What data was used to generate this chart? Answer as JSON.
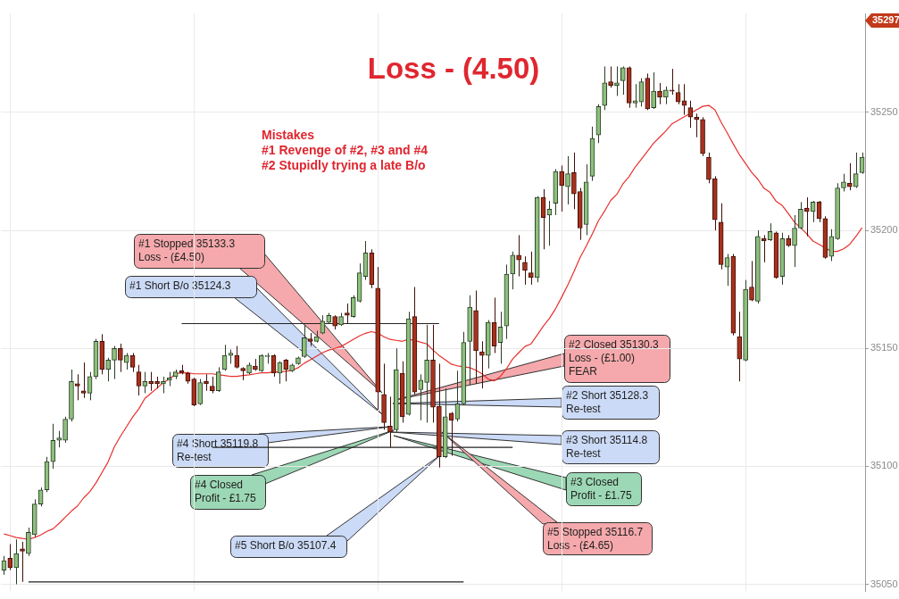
{
  "chart_data": {
    "type": "candlestick",
    "title": "Loss - (4.50)",
    "categories": [
      null,
      null,
      null,
      null,
      null,
      null,
      null,
      null,
      null,
      null,
      null,
      null,
      null,
      null,
      null,
      null,
      null,
      null,
      null,
      null,
      null,
      null,
      null,
      null,
      null,
      null,
      null,
      null,
      null,
      null,
      null,
      null,
      null,
      null,
      null,
      null,
      null,
      null,
      null,
      null,
      null,
      null,
      null,
      null,
      null,
      null,
      null,
      null,
      null,
      null,
      null,
      null,
      null,
      null,
      null,
      null,
      null,
      null,
      null,
      null,
      null,
      null,
      null,
      null,
      null,
      null,
      null,
      null,
      null,
      null,
      null,
      null,
      null,
      null,
      null,
      null,
      null,
      null,
      null,
      null,
      null,
      null,
      null,
      null,
      null,
      null,
      null,
      null,
      null,
      null,
      null,
      null,
      null,
      null,
      null,
      null,
      null,
      null,
      null,
      null,
      null,
      null,
      null,
      null,
      null,
      null,
      null,
      null,
      null,
      null,
      null,
      null,
      null,
      null,
      null,
      null,
      null,
      null,
      null,
      null,
      null,
      null,
      null,
      null,
      null,
      null,
      null,
      null,
      null,
      null,
      null,
      null,
      null,
      null,
      null,
      null,
      null,
      null,
      null,
      null,
      null
    ],
    "ohlc": [
      [
        35056,
        35062,
        35054,
        35060
      ],
      [
        35061,
        35067,
        35056,
        35057
      ],
      [
        35057,
        35069,
        35050,
        35063
      ],
      [
        35065,
        35068,
        35051,
        35064
      ],
      [
        35063,
        35074,
        35062,
        35072
      ],
      [
        35071,
        35086,
        35070,
        35084
      ],
      [
        35084,
        35091,
        35083,
        35090
      ],
      [
        35090,
        35104,
        35089,
        35102
      ],
      [
        35102,
        35118,
        35099,
        35111
      ],
      [
        35111,
        35115,
        35108,
        35112
      ],
      [
        35111,
        35121,
        35110,
        35120
      ],
      [
        35120,
        35141,
        35119,
        35136
      ],
      [
        35135,
        35139,
        35128,
        35134
      ],
      [
        35132,
        35144,
        35129,
        35131
      ],
      [
        35131,
        35140,
        35128,
        35138
      ],
      [
        35138,
        35154,
        35137,
        35153
      ],
      [
        35153,
        35156,
        35139,
        35141
      ],
      [
        35141,
        35146,
        35136,
        35145
      ],
      [
        35145,
        35151,
        35137,
        35150
      ],
      [
        35150,
        35152,
        35140,
        35145
      ],
      [
        35144,
        35148,
        35141,
        35147
      ],
      [
        35147,
        35148,
        35140,
        35142
      ],
      [
        35140,
        35143,
        35130,
        35134
      ],
      [
        35134,
        35140,
        35131,
        35136
      ],
      [
        35136,
        35140,
        35132,
        35135
      ],
      [
        35136,
        35138,
        35133,
        35135
      ],
      [
        35135,
        35138,
        35131,
        35136
      ],
      [
        35136.5,
        35140,
        35134,
        35137.5
      ],
      [
        35138,
        35141,
        35137,
        35140
      ],
      [
        35140.5,
        35143,
        35139,
        35139.5
      ],
      [
        35139.5,
        35140,
        35135,
        35136
      ],
      [
        35137,
        35137.5,
        35125.5,
        35126
      ],
      [
        35126.5,
        35137,
        35126,
        35135.5
      ],
      [
        35136,
        35139,
        35132,
        35135
      ],
      [
        35134,
        35138,
        35131,
        35132
      ],
      [
        35132,
        35142,
        35131.5,
        35140
      ],
      [
        35141,
        35151.5,
        35140.5,
        35147
      ],
      [
        35147,
        35149.5,
        35143.5,
        35148
      ],
      [
        35147,
        35151,
        35141.5,
        35142
      ],
      [
        35141.5,
        35142,
        35136.5,
        35140.5
      ],
      [
        35139.5,
        35144,
        35139,
        35143
      ],
      [
        35142.5,
        35145.5,
        35140.5,
        35141
      ],
      [
        35140.5,
        35147.5,
        35140,
        35147
      ],
      [
        35146.5,
        35148,
        35143.5,
        35147
      ],
      [
        35147,
        35147.5,
        35138,
        35139.5
      ],
      [
        35139.5,
        35144.5,
        35135,
        35144
      ],
      [
        35145,
        35145.5,
        35136,
        35141
      ],
      [
        35140.5,
        35143.5,
        35140,
        35143
      ],
      [
        35143.5,
        35146.5,
        35143,
        35146
      ],
      [
        35146.5,
        35160,
        35146,
        35154.5
      ],
      [
        35154,
        35156.5,
        35151,
        35153
      ],
      [
        35153,
        35157.5,
        35152.5,
        35155
      ],
      [
        35156.5,
        35164,
        35156,
        35161.5
      ],
      [
        35161,
        35165,
        35160.5,
        35164
      ],
      [
        35163.5,
        35164,
        35158,
        35159.5
      ],
      [
        35160,
        35165,
        35159.5,
        35163.5
      ],
      [
        35165,
        35169,
        35160.5,
        35164
      ],
      [
        35163.5,
        35172.5,
        35163,
        35171.5
      ],
      [
        35170,
        35186,
        35169.5,
        35182
      ],
      [
        35180.5,
        35195.5,
        35179,
        35190.5
      ],
      [
        35190.5,
        35192,
        35175.5,
        35177
      ],
      [
        35175.5,
        35184.5,
        35124,
        35131.5
      ],
      [
        35130.5,
        35143.5,
        35115.5,
        35118.5
      ],
      [
        35117,
        35129.5,
        35108,
        35114.5
      ],
      [
        35115.5,
        35150,
        35114.5,
        35141
      ],
      [
        35139.5,
        35144.5,
        35118.5,
        35121
      ],
      [
        35122,
        35165.5,
        35121.5,
        35162.5
      ],
      [
        35163.5,
        35176,
        35130.5,
        35131.5
      ],
      [
        35132.5,
        35139,
        35119.5,
        35136.5
      ],
      [
        35135.5,
        35160,
        35118.5,
        35145
      ],
      [
        35145,
        35160,
        35118.5,
        35125
      ],
      [
        35125.5,
        35143.5,
        35099.5,
        35104
      ],
      [
        35104,
        35133,
        35103.5,
        35121
      ],
      [
        35122.5,
        35123,
        35104.5,
        35119.5
      ],
      [
        35120,
        35140.5,
        35119,
        35126.5
      ],
      [
        35126.5,
        35157,
        35126,
        35152.5
      ],
      [
        35153,
        35172.5,
        35134.5,
        35167.5
      ],
      [
        35166,
        35174.5,
        35135,
        35149
      ],
      [
        35148.5,
        35153,
        35133,
        35147
      ],
      [
        35147,
        35162,
        35141.5,
        35161
      ],
      [
        35161,
        35171.5,
        35148,
        35151
      ],
      [
        35152.5,
        35165.5,
        35143.5,
        35159
      ],
      [
        35159.5,
        35185.5,
        35154,
        35181.5
      ],
      [
        35181.5,
        35191,
        35175,
        35189.5
      ],
      [
        35189.5,
        35198,
        35180.5,
        35187.5
      ],
      [
        35186.5,
        35189,
        35177,
        35183
      ],
      [
        35182,
        35191,
        35177,
        35180
      ],
      [
        35180,
        35214.5,
        35178,
        35214
      ],
      [
        35214,
        35217.5,
        35192,
        35205.5
      ],
      [
        35206.5,
        35212.5,
        35193.5,
        35209
      ],
      [
        35211.5,
        35226,
        35206.5,
        35225
      ],
      [
        35225,
        35227.5,
        35208,
        35219
      ],
      [
        35218.5,
        35231.5,
        35211,
        35224
      ],
      [
        35224.5,
        35233,
        35209,
        35215.5
      ],
      [
        35216.5,
        35218,
        35196,
        35201
      ],
      [
        35202.5,
        35228,
        35198,
        35220.5
      ],
      [
        35223,
        35244,
        35221,
        35239
      ],
      [
        35240.5,
        35253.5,
        35237,
        35252.5
      ],
      [
        35253,
        35269.5,
        35251,
        35262.5
      ],
      [
        35263,
        35269.5,
        35260.5,
        35261.5
      ],
      [
        35261.5,
        35269.5,
        35257,
        35262.5
      ],
      [
        35263.5,
        35269.5,
        35257.5,
        35269
      ],
      [
        35269,
        35269.5,
        35252,
        35254
      ],
      [
        35254,
        35262,
        35252,
        35255
      ],
      [
        35254.5,
        35264.5,
        35252.5,
        35263
      ],
      [
        35264.5,
        35266.5,
        35251,
        35251.5
      ],
      [
        35252,
        35267,
        35251.5,
        35259
      ],
      [
        35259,
        35262.5,
        35253.5,
        35256.5
      ],
      [
        35256.5,
        35261,
        35253.5,
        35259.5
      ],
      [
        35259.5,
        35268.5,
        35257.5,
        35259
      ],
      [
        35258.5,
        35262,
        35253.5,
        35254.5
      ],
      [
        35255,
        35262,
        35249,
        35253
      ],
      [
        35252,
        35255,
        35243.5,
        35248
      ],
      [
        35248,
        35249.5,
        35239.5,
        35247
      ],
      [
        35247,
        35248,
        35231.5,
        35232.5
      ],
      [
        35231,
        35233,
        35220,
        35221.5
      ],
      [
        35222,
        35223,
        35200,
        35204.5
      ],
      [
        35203.5,
        35211.5,
        35183.5,
        35185.5
      ],
      [
        35184.5,
        35190,
        35176.5,
        35188.5
      ],
      [
        35189,
        35190,
        35155.5,
        35156.5
      ],
      [
        35155,
        35165.5,
        35136,
        35145.5
      ],
      [
        35145,
        35179,
        35144.5,
        35175
      ],
      [
        35176,
        35187,
        35170,
        35170.5
      ],
      [
        35170,
        35200,
        35169,
        35197.5
      ],
      [
        35196.5,
        35198,
        35186.5,
        35195.5
      ],
      [
        35196,
        35203,
        35195.5,
        35199.5
      ],
      [
        35199,
        35199.5,
        35179.5,
        35180
      ],
      [
        35180.5,
        35199,
        35177,
        35196.5
      ],
      [
        35196.5,
        35198,
        35193,
        35193.5
      ],
      [
        35193.5,
        35206.5,
        35184.5,
        35201
      ],
      [
        35201,
        35212,
        35200.5,
        35209
      ],
      [
        35209.5,
        35214,
        35197.5,
        35208
      ],
      [
        35208,
        35212.5,
        35203.5,
        35212
      ],
      [
        35212,
        35212.5,
        35203.5,
        35205
      ],
      [
        35205,
        35206,
        35188,
        35188.5
      ],
      [
        35189,
        35200.5,
        35187,
        35197.5
      ],
      [
        35196.5,
        35220,
        35196,
        35218
      ],
      [
        35218,
        35224,
        35216.5,
        35220.5
      ],
      [
        35220,
        35228.5,
        35217,
        35218.5
      ],
      [
        35218.5,
        35233,
        35218,
        35224
      ],
      [
        35224.5,
        35233,
        35224,
        35231
      ]
    ],
    "series": [
      {
        "type": "line",
        "color": "#e8302c",
        "values": [
          35071.3,
          35070.6,
          35069.8,
          35069.4,
          35069.1,
          35069.8,
          35070.9,
          35072.4,
          35073.5,
          35075.8,
          35078.4,
          35081.0,
          35083.2,
          35086.6,
          35089.2,
          35092.9,
          35097.4,
          35101.9,
          35108.2,
          35112.7,
          35116.8,
          35120.9,
          35124.3,
          35128.8,
          35131.0,
          35133.2,
          35135.5,
          35137.0,
          35139.2,
          35139.6,
          35139.6,
          35139.2,
          35139.2,
          35139.2,
          35139.2,
          35138.8,
          35138.5,
          35138.1,
          35138.1,
          35138.5,
          35138.8,
          35139.2,
          35139.6,
          35139.6,
          35140.0,
          35140.0,
          35140.3,
          35140.7,
          35141.8,
          35143.7,
          35145.2,
          35146.7,
          35148.2,
          35149.3,
          35150.0,
          35150.8,
          35152.3,
          35153.8,
          35155.3,
          35156.4,
          35157.1,
          35156.4,
          35154.9,
          35153.8,
          35153.4,
          35153.0,
          35153.8,
          35153.4,
          35152.6,
          35151.9,
          35149.3,
          35147.0,
          35145.2,
          35143.3,
          35142.6,
          35142.2,
          35141.8,
          35140.7,
          35139.2,
          35137.0,
          35136.2,
          35138.1,
          35141.4,
          35145.5,
          35148.2,
          35150.8,
          35151.9,
          35155.6,
          35159.4,
          35162.7,
          35166.8,
          35171.7,
          35176.9,
          35182.5,
          35188.5,
          35193.3,
          35198.5,
          35204.1,
          35208.2,
          35212.7,
          35215.3,
          35219.8,
          35222.8,
          35226.9,
          35230.2,
          35233.6,
          35237.0,
          35239.6,
          35242.2,
          35245.2,
          35246.7,
          35248.2,
          35249.6,
          35251.1,
          35252.6,
          35253.0,
          35251.1,
          35245.9,
          35241.4,
          35236.6,
          35232.1,
          35228.4,
          35224.6,
          35221.7,
          35217.9,
          35216.1,
          35212.3,
          35210.5,
          35207.1,
          35203.4,
          35201.1,
          35198.5,
          35195.5,
          35194.1,
          35192.6,
          35191.1,
          35191.1,
          35192.2,
          35194.1,
          35197.4,
          35201.1
        ]
      },
      {
        "type": "line",
        "color": "#222222",
        "values": [
          null,
          null,
          null,
          null,
          null,
          null,
          null,
          null,
          null,
          null,
          null,
          null,
          null,
          null,
          null,
          null,
          null,
          null,
          null,
          null,
          null,
          null,
          null,
          null,
          null,
          null,
          null,
          null,
          null,
          35160.5,
          35160.5,
          35160.5,
          35160.5,
          35160.5,
          35160.5,
          35160.5,
          35160.5,
          35160.5,
          35160.5,
          35160.5,
          35160.5,
          35160.5,
          35160.5,
          35160.5,
          35160.5,
          35160.5,
          35160.5,
          35160.5,
          35160.5,
          35160.5,
          35160.5,
          35160.5,
          35160.5,
          35160.5,
          35160.5,
          35160.5,
          35160.5,
          35160.5,
          35160.5,
          35160.5,
          35160.5,
          35160.5,
          35160.5,
          35160.5,
          35160.5,
          35160.5,
          35160.5,
          35160.5,
          35160.5,
          35160.5,
          35160.5,
          35160.5,
          null,
          null,
          null,
          null,
          null,
          null,
          null,
          null,
          null,
          null,
          null,
          null,
          null,
          null,
          null,
          null,
          null,
          null,
          null,
          null,
          null,
          null,
          null,
          null,
          null,
          null,
          null,
          null,
          null,
          null,
          null,
          null,
          null,
          null,
          null,
          null,
          null,
          null,
          null,
          null,
          null,
          null,
          null,
          null,
          null,
          null,
          null,
          null,
          null,
          null,
          null,
          null,
          null,
          null,
          null,
          null,
          null,
          null,
          null,
          null,
          null,
          null,
          null,
          null,
          null,
          null,
          null,
          null,
          null
        ]
      },
      {
        "type": "line",
        "color": "#222222",
        "values": [
          null,
          null,
          null,
          null,
          null,
          null,
          null,
          null,
          null,
          null,
          null,
          null,
          null,
          null,
          null,
          null,
          null,
          null,
          null,
          null,
          null,
          null,
          null,
          null,
          null,
          null,
          null,
          null,
          null,
          null,
          null,
          null,
          null,
          null,
          35108,
          35108,
          35108,
          35108,
          35108,
          35108,
          35108,
          35108,
          35108,
          35108,
          35108,
          35108,
          35108,
          35108,
          35108,
          35108,
          35108,
          35108,
          35108,
          35108,
          35108,
          35108,
          35108,
          35108,
          35108,
          35108,
          35108,
          35108,
          35108,
          35108,
          35108,
          35108,
          35108,
          35108,
          35108,
          35108,
          35108,
          35108,
          35108,
          35108,
          35108,
          35108,
          35108,
          35108,
          35108,
          35108,
          35108,
          35108,
          35108,
          35108,
          null,
          null,
          null,
          null,
          null,
          null,
          null,
          null,
          null,
          null,
          null,
          null,
          null,
          null,
          null,
          null,
          null,
          null,
          null,
          null,
          null,
          null,
          null,
          null,
          null,
          null,
          null,
          null,
          null,
          null,
          null,
          null,
          null,
          null,
          null,
          null,
          null,
          null,
          null,
          null,
          null,
          null,
          null,
          null,
          null,
          null,
          null,
          null,
          null,
          null,
          null,
          null,
          null,
          null,
          null,
          null,
          null
        ]
      },
      {
        "type": "line",
        "color": "#222222",
        "values": [
          null,
          null,
          null,
          null,
          35051,
          35051,
          35051,
          35051,
          35051,
          35051,
          35051,
          35051,
          35051,
          35051,
          35051,
          35051,
          35051,
          35051,
          35051,
          35051,
          35051,
          35051,
          35051,
          35051,
          35051,
          35051,
          35051,
          35051,
          35051,
          35051,
          35051,
          35051,
          35051,
          35051,
          35051,
          35051,
          35051,
          35051,
          35051,
          35051,
          35051,
          35051,
          35051,
          35051,
          35051,
          35051,
          35051,
          35051,
          35051,
          35051,
          35051,
          35051,
          35051,
          35051,
          35051,
          35051,
          35051,
          35051,
          35051,
          35051,
          35051,
          35051,
          35051,
          35051,
          35051,
          35051,
          35051,
          35051,
          35051,
          35051,
          35051,
          35051,
          35051,
          35051,
          35051,
          35051,
          null,
          null,
          null,
          null,
          null,
          null,
          null,
          null,
          null,
          null,
          null,
          null,
          null,
          null,
          null,
          null,
          null,
          null,
          null,
          null,
          null,
          null,
          null,
          null,
          null,
          null,
          null,
          null,
          null,
          null,
          null,
          null,
          null,
          null,
          null,
          null,
          null,
          null,
          null,
          null,
          null,
          null,
          null,
          null,
          null,
          null,
          null,
          null,
          null,
          null,
          null,
          null,
          null,
          null,
          null,
          null,
          null,
          null,
          null,
          null,
          null,
          null,
          null,
          null,
          null
        ]
      }
    ],
    "ylim": [
      35047,
      35292
    ],
    "yticks": [
      35050,
      35100,
      35150,
      35200,
      35250
    ],
    "grid": "y",
    "legend": false,
    "marker": "none",
    "annotations": [
      "Mistakes\n#1 Revenge of #2, #3 and #4\n#2 Stupidly trying a late B/o",
      "#1 Stopped 35133.3\nLoss - (£4.50)",
      "#1 Short B/o 35124.3",
      "#2 Closed 35130.3\nLoss - (£1.00)\nFEAR",
      "#2 Short 35128.3\nRe-test",
      "#3 Short 35114.8\nRe-test",
      "#3 Closed\nProfit - £1.75",
      "#4 Short 35119.8\nRe-test",
      "#4 Closed\nProfit - £1.75",
      "#5 Short B/o 35107.4",
      "#5 Stopped 35116.7\nLoss - (£4.65)",
      "35297"
    ]
  }
}
